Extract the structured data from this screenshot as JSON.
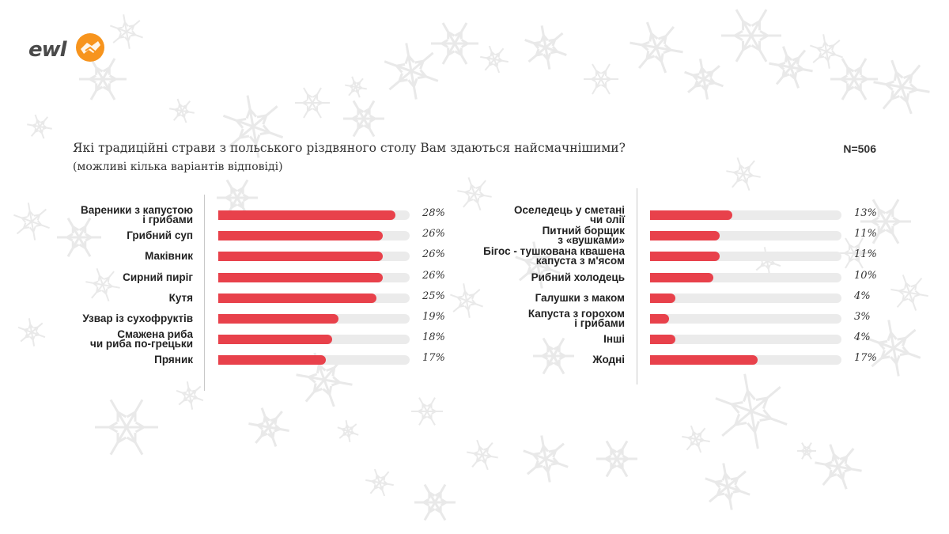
{
  "logo": {
    "text": "ewl",
    "icon": "handshake-logo-icon",
    "accent": "#f7941d"
  },
  "title": "Які традиційні страви з польського різдвяного столу Вам здаються найсмачнішими?",
  "subtitle": "(можливі кілька варіантів відповіді)",
  "sample_size": "N=506",
  "colors": {
    "bar": "#e8414b",
    "track": "#ebebeb"
  },
  "chart_data": [
    {
      "type": "bar",
      "orientation": "horizontal",
      "xlim": [
        0,
        28
      ],
      "categories": [
        "Вареники з капустою\nі грибами",
        "Грибний суп",
        "Маківник",
        "Сирний пиріг",
        "Кутя",
        "Узвар із сухофруктів",
        "Смажена риба\nчи риба по-грецьки",
        "Пряник"
      ],
      "values": [
        28,
        26,
        26,
        26,
        25,
        19,
        18,
        17
      ],
      "value_labels": [
        "28%",
        "26%",
        "26%",
        "26%",
        "25%",
        "19%",
        "18%",
        "17%"
      ]
    },
    {
      "type": "bar",
      "orientation": "horizontal",
      "xlim": [
        0,
        28
      ],
      "categories": [
        "Оселедець у сметані\nчи олії",
        "Питний борщик\nз «вушками»",
        "Бігос - тушкована квашена\nкапуста з м'ясом",
        "Рибний холодець",
        "Галушки з маком",
        "Капуста з горохом\nі грибами",
        "Інші",
        "Жодні"
      ],
      "values": [
        13,
        11,
        11,
        10,
        4,
        3,
        4,
        17
      ],
      "value_labels": [
        "13%",
        "11%",
        "11%",
        "10%",
        "4%",
        "3%",
        "4%",
        "17%"
      ]
    }
  ]
}
